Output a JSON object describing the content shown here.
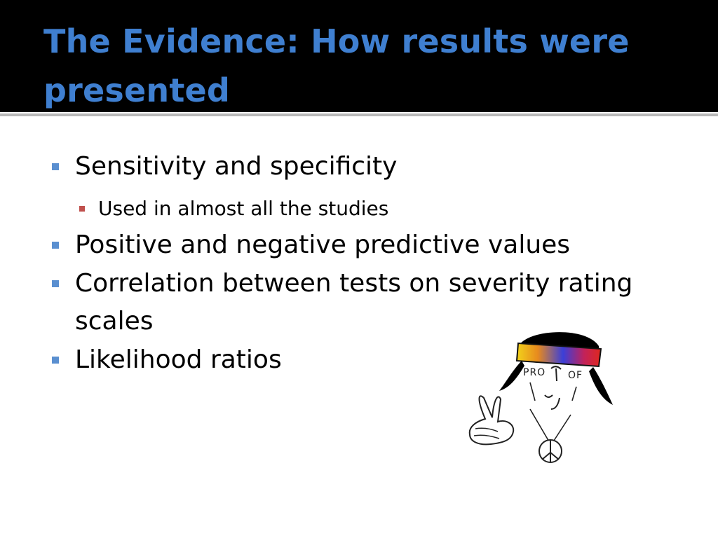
{
  "slide": {
    "title": "The Evidence: How results were presented",
    "bullets": {
      "b1": "Sensitivity and specificity",
      "b1_sub": "Used in almost all the studies",
      "b2": "Positive and negative predictive values",
      "b3_line1": "Correlation between tests on severity rating",
      "b3_line2": "scales",
      "b4": "Likelihood ratios"
    },
    "illustration": {
      "headband_text": "PRO OF",
      "icon": "hippie-peace-cartoon"
    },
    "colors": {
      "title": "#3f7fd0",
      "bullet_level1": "#5a8fd0",
      "bullet_level2": "#c0504d",
      "header_background": "#000000"
    }
  }
}
